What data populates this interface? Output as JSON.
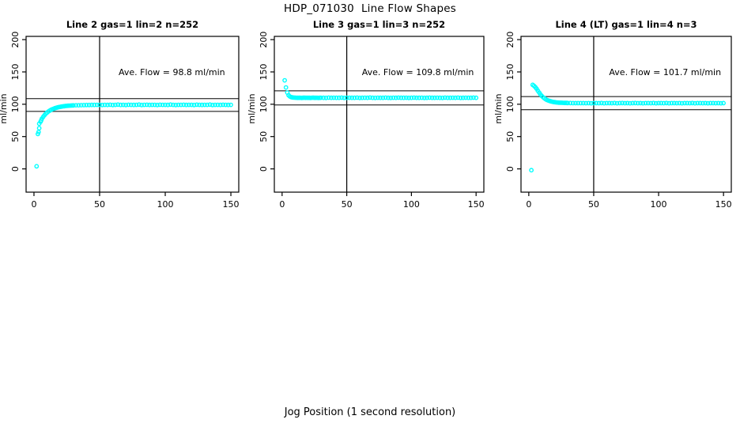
{
  "page": {
    "title": "HDP_071030  Line Flow Shapes",
    "xlabel": "Jog Position (1 second resolution)"
  },
  "colors": {
    "points": "#00ffff",
    "axis": "#000000",
    "background": "#ffffff"
  },
  "chart_data": [
    {
      "type": "scatter",
      "title": "Line 2 gas=1 lin=2 n=252",
      "annotation": "Ave. Flow =  98.8  ml/min",
      "ave_flow_ml_min": 98.8,
      "ylabel": "ml/min",
      "x_ticks": [
        0,
        50,
        100,
        150
      ],
      "y_ticks": [
        0,
        50,
        100,
        150,
        200
      ],
      "xlim": [
        -6,
        156
      ],
      "ylim": [
        -36,
        205
      ],
      "vline_x": 50,
      "hlines": [
        108.7,
        88.9
      ],
      "grid": false,
      "points": [
        [
          2,
          4
        ],
        [
          3,
          54
        ],
        [
          3.5,
          57
        ],
        [
          4,
          63
        ],
        [
          4,
          70
        ],
        [
          5,
          73
        ],
        [
          5.5,
          75
        ],
        [
          6,
          77.5
        ],
        [
          7,
          80.5
        ],
        [
          8,
          83
        ],
        [
          9,
          85.3
        ],
        [
          10,
          87.2
        ],
        [
          11,
          88.8
        ],
        [
          12,
          90.1
        ],
        [
          13,
          91.3
        ],
        [
          14,
          92.3
        ],
        [
          15,
          93.1
        ],
        [
          16,
          93.9
        ],
        [
          17,
          94.5
        ],
        [
          18,
          95.1
        ],
        [
          19,
          95.6
        ],
        [
          20,
          96
        ],
        [
          21,
          96.4
        ],
        [
          22,
          96.7
        ],
        [
          23,
          97
        ],
        [
          24,
          97.3
        ],
        [
          25,
          97.5
        ],
        [
          26,
          97.7
        ],
        [
          27,
          97.8
        ],
        [
          28,
          98
        ],
        [
          29,
          98.1
        ],
        [
          30,
          98.2
        ],
        [
          32,
          98.4
        ],
        [
          34,
          98.5
        ],
        [
          36,
          98.6
        ],
        [
          38,
          98.7
        ],
        [
          40,
          98.8
        ],
        [
          42,
          98.8
        ],
        [
          44,
          98.9
        ],
        [
          46,
          98.9
        ],
        [
          48,
          99
        ],
        [
          50,
          99
        ],
        [
          52,
          98.8
        ],
        [
          54,
          99.1
        ],
        [
          56,
          98.9
        ],
        [
          58,
          99.2
        ],
        [
          60,
          98.8
        ],
        [
          62,
          99
        ],
        [
          64,
          99.4
        ],
        [
          66,
          98.9
        ],
        [
          68,
          99.1
        ],
        [
          70,
          98.8
        ],
        [
          72,
          99.2
        ],
        [
          74,
          99
        ],
        [
          76,
          98.9
        ],
        [
          78,
          99.1
        ],
        [
          80,
          99.4
        ],
        [
          82,
          98.8
        ],
        [
          84,
          99
        ],
        [
          86,
          99.2
        ],
        [
          88,
          98.9
        ],
        [
          90,
          99.1
        ],
        [
          92,
          99
        ],
        [
          94,
          98.8
        ],
        [
          96,
          99.2
        ],
        [
          98,
          99
        ],
        [
          100,
          99.1
        ],
        [
          102,
          98.9
        ],
        [
          104,
          99.4
        ],
        [
          106,
          99
        ],
        [
          108,
          98.8
        ],
        [
          110,
          99.1
        ],
        [
          112,
          99
        ],
        [
          114,
          99.2
        ],
        [
          116,
          98.9
        ],
        [
          118,
          99
        ],
        [
          120,
          99.1
        ],
        [
          122,
          98.8
        ],
        [
          124,
          99.3
        ],
        [
          126,
          99
        ],
        [
          128,
          98.9
        ],
        [
          130,
          99.1
        ],
        [
          132,
          99
        ],
        [
          134,
          99.4
        ],
        [
          136,
          98.8
        ],
        [
          138,
          99
        ],
        [
          140,
          99.1
        ],
        [
          142,
          98.9
        ],
        [
          144,
          99.2
        ],
        [
          146,
          99
        ],
        [
          148,
          98.9
        ],
        [
          150,
          99
        ]
      ]
    },
    {
      "type": "scatter",
      "title": "Line 3 gas=1 lin=3 n=252",
      "annotation": "Ave. Flow =  109.8  ml/min",
      "ave_flow_ml_min": 109.8,
      "ylabel": "ml/min",
      "x_ticks": [
        0,
        50,
        100,
        150
      ],
      "y_ticks": [
        0,
        50,
        100,
        150,
        200
      ],
      "xlim": [
        -6,
        156
      ],
      "ylim": [
        -36,
        205
      ],
      "vline_x": 50,
      "hlines": [
        120.8,
        98.8
      ],
      "grid": false,
      "points": [
        [
          2,
          137
        ],
        [
          3,
          126
        ],
        [
          4,
          118
        ],
        [
          5,
          114
        ],
        [
          6,
          112
        ],
        [
          7,
          111
        ],
        [
          8,
          110.5
        ],
        [
          9,
          110.3
        ],
        [
          10,
          110.2
        ],
        [
          11,
          110.1
        ],
        [
          12,
          110
        ],
        [
          13,
          109.9
        ],
        [
          14,
          110.1
        ],
        [
          15,
          109.8
        ],
        [
          16,
          110
        ],
        [
          17,
          110.2
        ],
        [
          18,
          109.9
        ],
        [
          19,
          110.1
        ],
        [
          20,
          110
        ],
        [
          21,
          109.9
        ],
        [
          22,
          109.8
        ],
        [
          23,
          110.1
        ],
        [
          24,
          110.2
        ],
        [
          25,
          110
        ],
        [
          26,
          109.9
        ],
        [
          27,
          110.1
        ],
        [
          28,
          109.8
        ],
        [
          29,
          110
        ],
        [
          30,
          110.1
        ],
        [
          32,
          110
        ],
        [
          34,
          109.8
        ],
        [
          36,
          110.2
        ],
        [
          38,
          110
        ],
        [
          40,
          110.1
        ],
        [
          42,
          109.9
        ],
        [
          44,
          110
        ],
        [
          46,
          110.2
        ],
        [
          48,
          109.8
        ],
        [
          50,
          110
        ],
        [
          52,
          110.1
        ],
        [
          54,
          109.9
        ],
        [
          56,
          110
        ],
        [
          58,
          110.2
        ],
        [
          60,
          109.8
        ],
        [
          62,
          110
        ],
        [
          64,
          110.1
        ],
        [
          66,
          109.9
        ],
        [
          68,
          110.3
        ],
        [
          70,
          110
        ],
        [
          72,
          109.8
        ],
        [
          74,
          110.1
        ],
        [
          76,
          110
        ],
        [
          78,
          109.9
        ],
        [
          80,
          110.2
        ],
        [
          82,
          110
        ],
        [
          84,
          109.8
        ],
        [
          86,
          110.1
        ],
        [
          88,
          110
        ],
        [
          90,
          110.2
        ],
        [
          92,
          109.9
        ],
        [
          94,
          110
        ],
        [
          96,
          110.1
        ],
        [
          98,
          109.8
        ],
        [
          100,
          110
        ],
        [
          102,
          110.2
        ],
        [
          104,
          109.9
        ],
        [
          106,
          110
        ],
        [
          108,
          110.1
        ],
        [
          110,
          109.8
        ],
        [
          112,
          110
        ],
        [
          114,
          110.2
        ],
        [
          116,
          110
        ],
        [
          118,
          109.9
        ],
        [
          120,
          110.1
        ],
        [
          122,
          110
        ],
        [
          124,
          109.8
        ],
        [
          126,
          110.2
        ],
        [
          128,
          110
        ],
        [
          130,
          109.9
        ],
        [
          132,
          110.1
        ],
        [
          134,
          110
        ],
        [
          136,
          110.2
        ],
        [
          138,
          109.8
        ],
        [
          140,
          110
        ],
        [
          142,
          110.1
        ],
        [
          144,
          109.9
        ],
        [
          146,
          110
        ],
        [
          148,
          110.2
        ],
        [
          150,
          110
        ]
      ]
    },
    {
      "type": "scatter",
      "title": "Line 4 (LT) gas=1 lin=4 n=3",
      "annotation": "Ave. Flow =  101.7  ml/min",
      "ave_flow_ml_min": 101.7,
      "ylabel": "ml/min",
      "x_ticks": [
        0,
        50,
        100,
        150
      ],
      "y_ticks": [
        0,
        50,
        100,
        150,
        200
      ],
      "xlim": [
        -6,
        156
      ],
      "ylim": [
        -36,
        205
      ],
      "vline_x": 50,
      "hlines": [
        111.9,
        91.5
      ],
      "grid": false,
      "points": [
        [
          2,
          -2
        ],
        [
          3,
          130
        ],
        [
          4,
          128.5
        ],
        [
          5,
          126.5
        ],
        [
          6,
          124
        ],
        [
          7,
          121
        ],
        [
          8,
          118
        ],
        [
          9,
          115.2
        ],
        [
          10,
          112.8
        ],
        [
          11,
          110.8
        ],
        [
          12,
          109.2
        ],
        [
          13,
          107.8
        ],
        [
          14,
          106.7
        ],
        [
          15,
          105.8
        ],
        [
          16,
          105
        ],
        [
          17,
          104.4
        ],
        [
          18,
          103.9
        ],
        [
          19,
          103.5
        ],
        [
          20,
          103.2
        ],
        [
          21,
          102.9
        ],
        [
          22,
          102.7
        ],
        [
          23,
          102.5
        ],
        [
          24,
          102.4
        ],
        [
          25,
          102.3
        ],
        [
          26,
          102.2
        ],
        [
          27,
          102.1
        ],
        [
          28,
          102
        ],
        [
          29,
          102
        ],
        [
          30,
          101.9
        ],
        [
          32,
          101.9
        ],
        [
          34,
          101.8
        ],
        [
          36,
          101.8
        ],
        [
          38,
          101.7
        ],
        [
          40,
          101.7
        ],
        [
          42,
          101.8
        ],
        [
          44,
          101.6
        ],
        [
          46,
          101.8
        ],
        [
          48,
          101.5
        ],
        [
          50,
          101.7
        ],
        [
          52,
          101.8
        ],
        [
          54,
          101.6
        ],
        [
          56,
          101.9
        ],
        [
          58,
          101.5
        ],
        [
          60,
          101.7
        ],
        [
          62,
          101.8
        ],
        [
          64,
          101.6
        ],
        [
          66,
          101.9
        ],
        [
          68,
          101.5
        ],
        [
          70,
          101.7
        ],
        [
          72,
          101.9
        ],
        [
          74,
          101.6
        ],
        [
          76,
          101.8
        ],
        [
          78,
          101.5
        ],
        [
          80,
          101.7
        ],
        [
          82,
          101.9
        ],
        [
          84,
          101.6
        ],
        [
          86,
          101.8
        ],
        [
          88,
          101.5
        ],
        [
          90,
          101.7
        ],
        [
          92,
          101.8
        ],
        [
          94,
          101.6
        ],
        [
          96,
          101.9
        ],
        [
          98,
          101.5
        ],
        [
          100,
          101.7
        ],
        [
          102,
          101.8
        ],
        [
          104,
          101.6
        ],
        [
          106,
          101.9
        ],
        [
          108,
          101.5
        ],
        [
          110,
          101.7
        ],
        [
          112,
          101.8
        ],
        [
          114,
          101.6
        ],
        [
          116,
          101.8
        ],
        [
          118,
          101.5
        ],
        [
          120,
          101.7
        ],
        [
          122,
          101.8
        ],
        [
          124,
          101.6
        ],
        [
          126,
          101.9
        ],
        [
          128,
          101.5
        ],
        [
          130,
          101.7
        ],
        [
          132,
          101.8
        ],
        [
          134,
          101.6
        ],
        [
          136,
          101.8
        ],
        [
          138,
          101.5
        ],
        [
          140,
          101.7
        ],
        [
          142,
          101.8
        ],
        [
          144,
          101.6
        ],
        [
          146,
          101.8
        ],
        [
          148,
          101.5
        ],
        [
          150,
          101.7
        ]
      ]
    }
  ]
}
